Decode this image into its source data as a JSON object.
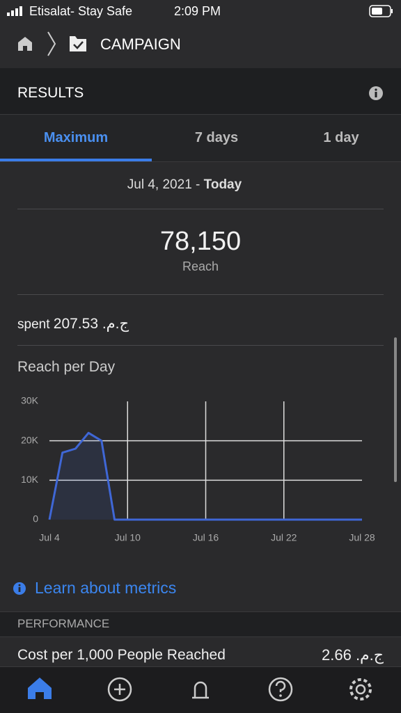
{
  "status_bar": {
    "carrier": "Etisalat- Stay Safe",
    "time": "2:09 PM"
  },
  "header": {
    "title": "CAMPAIGN"
  },
  "results": {
    "title": "RESULTS"
  },
  "tabs": [
    "Maximum",
    "7 days",
    "1 day"
  ],
  "date_range": {
    "start": "Jul 4, 2021 - ",
    "end": "Today"
  },
  "metric": {
    "value": "78,150",
    "label": "Reach"
  },
  "spent": {
    "label": "spent",
    "amount": "ج.م. 207.53"
  },
  "chart_data": {
    "type": "area",
    "title": "Reach per Day",
    "categories": [
      "Jul 4",
      null,
      null,
      null,
      null,
      null,
      "Jul 10",
      null,
      null,
      null,
      null,
      null,
      "Jul 16",
      null,
      null,
      null,
      null,
      null,
      "Jul 22",
      null,
      null,
      null,
      null,
      null,
      "Jul 28"
    ],
    "values": [
      0,
      17000,
      18000,
      22000,
      20000,
      0,
      0,
      0,
      0,
      0,
      0,
      0,
      0,
      0,
      0,
      0,
      0,
      0,
      0,
      0,
      0,
      0,
      0,
      0,
      0
    ],
    "color": "#3f67d6",
    "ylim": [
      0,
      30000
    ],
    "yticks": [
      0,
      {
        "value": 10000,
        "label": "10K"
      },
      {
        "value": 20000,
        "label": "20K"
      },
      {
        "value": 30000,
        "label": "30K"
      }
    ],
    "grid": true
  },
  "learn_link": "Learn about metrics",
  "performance": {
    "title": "PERFORMANCE",
    "row_label": "Cost per 1,000 People Reached",
    "row_value": "ج.م. 2.66"
  }
}
